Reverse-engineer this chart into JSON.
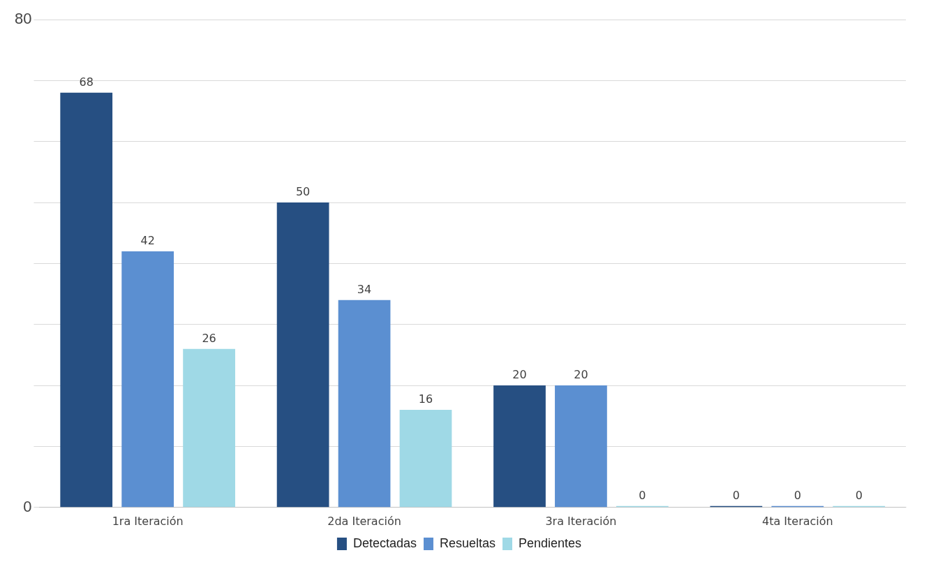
{
  "chart_data": {
    "type": "bar",
    "categories": [
      "1ra Iteración",
      "2da Iteración",
      "3ra Iteración",
      "4ta Iteración"
    ],
    "series": [
      {
        "name": "Detectadas",
        "color": "#264f82",
        "values": [
          68,
          50,
          20,
          0
        ]
      },
      {
        "name": "Resueltas",
        "color": "#5b8fd1",
        "values": [
          42,
          34,
          20,
          0
        ]
      },
      {
        "name": "Pendientes",
        "color": "#9fd9e6",
        "values": [
          26,
          16,
          0,
          0
        ]
      }
    ],
    "ylim": [
      0,
      80
    ],
    "yticks": [
      0,
      {
        "value": 10,
        "label": null
      },
      {
        "value": 20,
        "label": null
      },
      {
        "value": 30,
        "label": null
      },
      {
        "value": 40,
        "label": null
      },
      {
        "value": 50,
        "label": null
      },
      {
        "value": 60,
        "label": null
      },
      {
        "value": 70,
        "label": null
      },
      80
    ],
    "grid": "y",
    "legend": "bottom",
    "data_labels": true
  }
}
